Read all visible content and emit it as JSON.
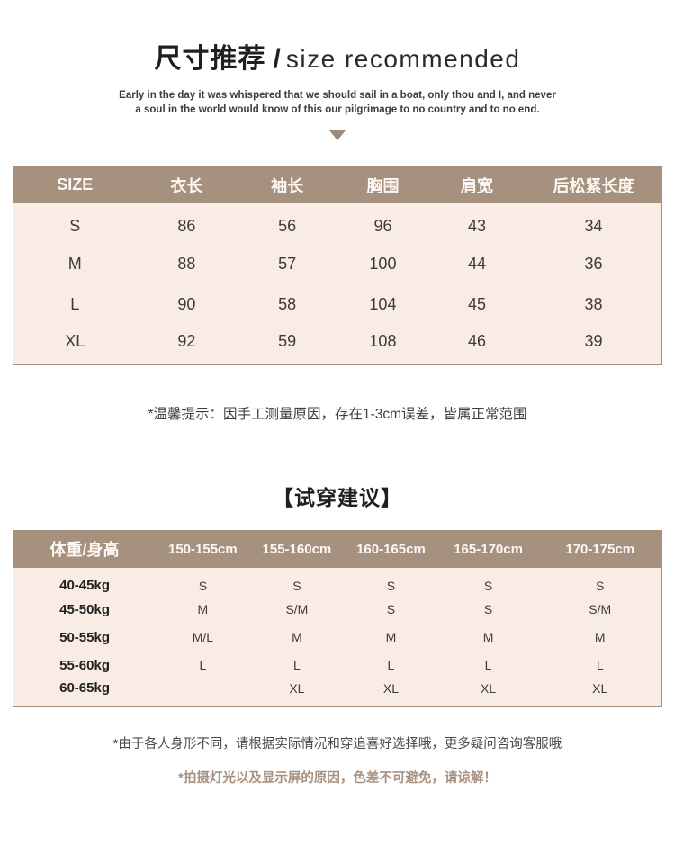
{
  "header": {
    "title_zh": "尺寸推荐",
    "title_slash": "/",
    "title_en": "size recommended",
    "subtitle_line1": "Early in the day it was whispered that we should sail in a boat, only thou and I, and never",
    "subtitle_line2": "a soul in the world would know of this our pilgrimage to no country and to no end."
  },
  "icons": {
    "down_arrow": "down-arrow-icon"
  },
  "size_table": {
    "headers": [
      "SIZE",
      "衣长",
      "袖长",
      "胸围",
      "肩宽",
      "后松紧长度"
    ],
    "rows": [
      [
        "S",
        "86",
        "56",
        "96",
        "43",
        "34"
      ],
      [
        "M",
        "88",
        "57",
        "100",
        "44",
        "36"
      ],
      [
        "L",
        "90",
        "58",
        "104",
        "45",
        "38"
      ],
      [
        "XL",
        "92",
        "59",
        "108",
        "46",
        "39"
      ]
    ]
  },
  "measure_note": "*温馨提示：因手工测量原因，存在1-3cm误差，皆属正常范围",
  "fit_section": {
    "heading": "【试穿建议】"
  },
  "fit_table": {
    "headers": [
      "体重/身高",
      "150-155cm",
      "155-160cm",
      "160-165cm",
      "165-170cm",
      "170-175cm"
    ],
    "rows": [
      [
        "40-45kg",
        "S",
        "S",
        "S",
        "S",
        "S"
      ],
      [
        "45-50kg",
        "M",
        "S/M",
        "S",
        "S",
        "S/M"
      ],
      [
        "50-55kg",
        "M/L",
        "M",
        "M",
        "M",
        "M"
      ],
      [
        "55-60kg",
        "L",
        "L",
        "L",
        "L",
        "L"
      ],
      [
        "60-65kg",
        "",
        "XL",
        "XL",
        "XL",
        "XL"
      ]
    ]
  },
  "footer": {
    "note1": "*由于各人身形不同，请根据实际情况和穿追喜好选择哦，更多疑问咨询客服哦",
    "note2": "*拍摄灯光以及显示屏的原因，色差不可避免，请谅解！"
  },
  "colors": {
    "table_header_bg": "#a6917f",
    "table_body_bg": "#f9ece4",
    "accent_text": "#a89180",
    "arrow": "#9d8a79"
  }
}
